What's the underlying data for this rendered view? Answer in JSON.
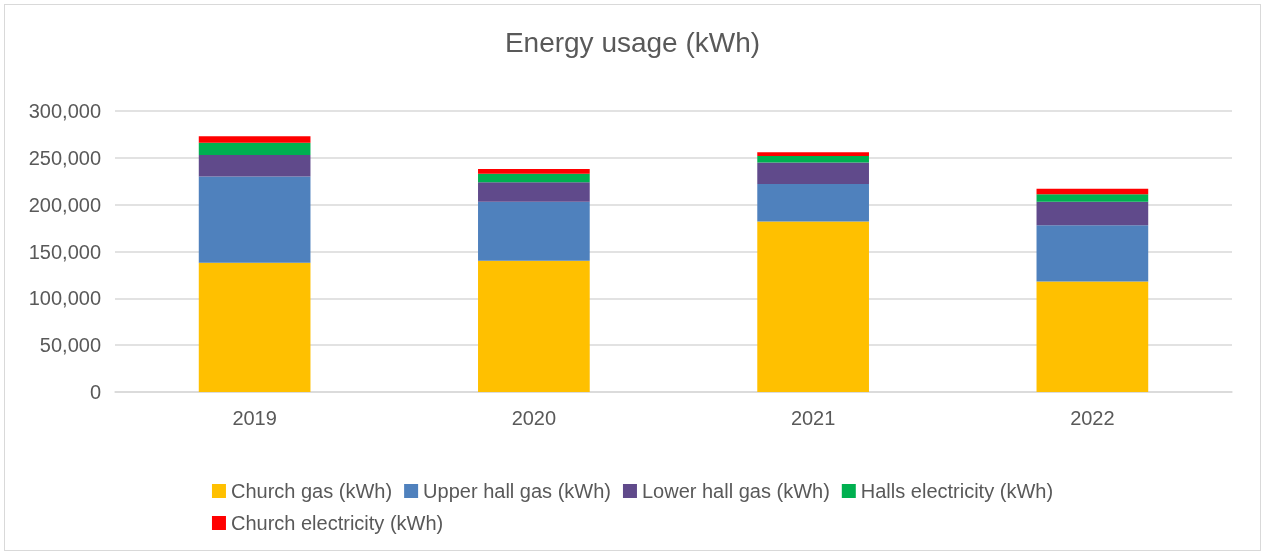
{
  "chart_data": {
    "type": "bar",
    "title": "Energy usage (kWh)",
    "stacked": true,
    "categories": [
      "2019",
      "2020",
      "2021",
      "2022"
    ],
    "series": [
      {
        "name": "Church gas (kWh)",
        "color": "#ffc000",
        "values": [
          138000,
          140000,
          182000,
          118000
        ]
      },
      {
        "name": "Upper hall gas (kWh)",
        "color": "#4f81bd",
        "values": [
          92000,
          63000,
          40000,
          60000
        ]
      },
      {
        "name": "Lower hall gas (kWh)",
        "color": "#604a8b",
        "values": [
          23000,
          21000,
          23000,
          25000
        ]
      },
      {
        "name": "Halls electricity (kWh)",
        "color": "#00b050",
        "values": [
          13000,
          9000,
          7000,
          8000
        ]
      },
      {
        "name": "Church electricity (kWh)",
        "color": "#ff0000",
        "values": [
          7000,
          5000,
          4000,
          6000
        ]
      }
    ],
    "ylim": [
      0,
      300000
    ],
    "yticks": [
      0,
      {
        "value": 50000,
        "label": "50,000"
      },
      {
        "value": 100000,
        "label": "100,000"
      },
      {
        "value": 150000,
        "label": "150,000"
      },
      {
        "value": 200000,
        "label": "200,000"
      },
      {
        "value": 250000,
        "label": "250,000"
      },
      {
        "value": 300000,
        "label": "300,000"
      }
    ],
    "grid": "y",
    "legend": "bottom"
  }
}
